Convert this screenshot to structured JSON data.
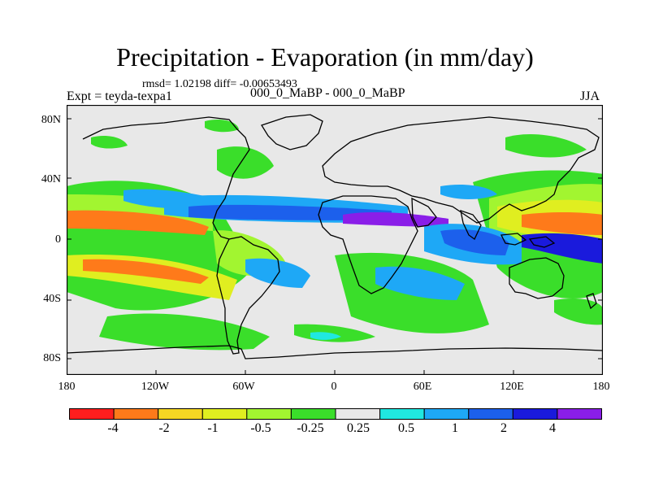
{
  "title": "Precipitation - Evaporation (in mm/day)",
  "stats": "rmsd= 1.02198 diff= -0.00653493",
  "experiment": "Expt = teyda-texpa1",
  "center_label": "000_0_MaBP - 000_0_MaBP",
  "season": "JJA",
  "y_axis_labels": [
    "80N",
    "40N",
    "0",
    "40S",
    "80S"
  ],
  "x_axis_labels": [
    "180",
    "120W",
    "60W",
    "0",
    "60E",
    "120E",
    "180"
  ],
  "colorbar": {
    "colors": [
      "#ff1e1e",
      "#fe7a1a",
      "#f5d623",
      "#e0ee20",
      "#a2f530",
      "#3ade2a",
      "#e8e8e8",
      "#20e8e0",
      "#1ea8f6",
      "#1c60ec",
      "#1a1adc",
      "#8a1ee8"
    ],
    "labels": [
      "-4",
      "-2",
      "-1",
      "-0.5",
      "-0.25",
      "0.25",
      "0.5",
      "1",
      "2",
      "4"
    ]
  }
}
